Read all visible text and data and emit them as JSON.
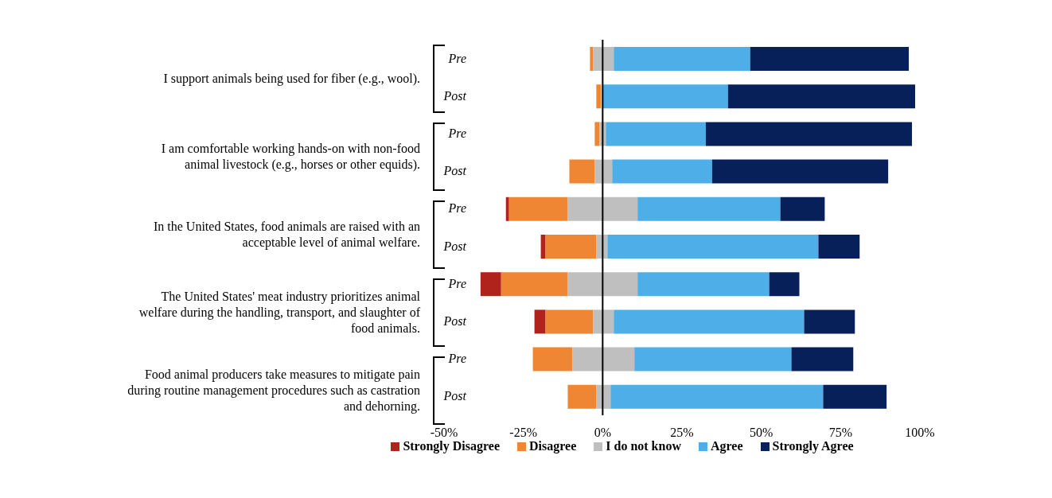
{
  "chart_data": {
    "type": "bar",
    "orientation": "horizontal",
    "categories": [
      "Pre",
      "Post",
      "Pre",
      "Post",
      "Pre",
      "Post",
      "Pre",
      "Post",
      "Pre",
      "Post"
    ],
    "series": [
      {
        "name": "Strongly Disagree",
        "color": "#b0221c",
        "values": [
          null,
          null,
          null,
          null,
          1,
          1.5,
          6.5,
          3.5,
          null,
          null
        ],
        "base": [
          null,
          null,
          null,
          null,
          -30.5,
          -19.5,
          -38.5,
          -21.5,
          null,
          null
        ]
      },
      {
        "name": "Disagree",
        "color": "#ee8634",
        "values": [
          1,
          1.5,
          1.5,
          8,
          18.5,
          16,
          21,
          15,
          12.5,
          9
        ],
        "base": [
          -4,
          -2,
          -2.5,
          -10.5,
          -29.5,
          -18,
          -32,
          -18,
          -22,
          -11
        ]
      },
      {
        "name": "I do not know",
        "color": "#bfbfbf",
        "values": [
          6.5,
          null,
          2,
          5.5,
          22,
          3.5,
          22,
          6.5,
          19.5,
          4.5
        ],
        "base": [
          -3,
          null,
          -1,
          -2.5,
          -11,
          -2,
          -11,
          -3,
          -9.5,
          -2
        ]
      },
      {
        "name": "Agree",
        "color": "#4daee8",
        "values": [
          43,
          39.5,
          31.5,
          31.5,
          45,
          66.5,
          41.5,
          60,
          49.5,
          67
        ],
        "base": [
          3.5,
          0,
          1,
          3,
          11,
          1.5,
          11,
          3.5,
          10,
          2.5
        ]
      },
      {
        "name": "Strongly Agree",
        "color": "#08205a",
        "values": [
          50,
          59,
          65,
          55.5,
          14,
          13,
          9.5,
          16,
          19.5,
          20
        ],
        "base": [
          46.5,
          39.5,
          32.5,
          34.5,
          56,
          68,
          52.5,
          63.5,
          59.5,
          69.5
        ]
      }
    ],
    "xlim": [
      -50,
      100
    ],
    "xticks": [
      {
        "value": -50,
        "label": "-50%"
      },
      {
        "value": -25,
        "label": "-25%"
      },
      {
        "value": 0,
        "label": "0%"
      },
      {
        "value": 25,
        "label": "25%"
      },
      {
        "value": 50,
        "label": "50%"
      },
      {
        "value": 75,
        "label": "75%"
      },
      {
        "value": 100,
        "label": "100%"
      }
    ],
    "ref_lines": [
      {
        "axis": "x",
        "value": 0,
        "color": "#000000"
      }
    ],
    "annotations": [
      "I support animals being used for fiber (e.g., wool).",
      "I am comfortable working hands-on with non-food animal livestock (e.g., horses or other equids).",
      "In the United States, food animals are raised with an acceptable level of animal welfare.",
      "The United States' meat industry prioritizes animal welfare during the handling, transport, and slaughter of food animals.",
      "Food animal producers take measures to mitigate pain during routine management procedures such as castration and dehorning."
    ],
    "legend": "bottom"
  }
}
